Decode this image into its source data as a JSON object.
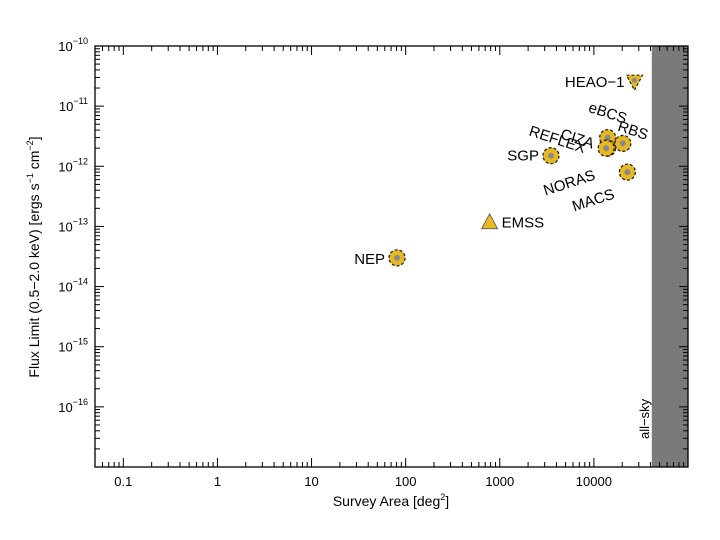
{
  "chart_data": {
    "type": "scatter",
    "title": "",
    "xlabel": "Survey Area [deg",
    "xlabel_sup": "2",
    "xlabel_end": "]",
    "ylabel_parts": [
      "Flux Limit (0.5−2.0 keV) [ergs s",
      "−1",
      " cm",
      "−2",
      "]"
    ],
    "x_scale": "log",
    "y_scale": "log",
    "xlim": [
      0.05,
      100000
    ],
    "ylim": [
      1e-17,
      1e-10
    ],
    "x_ticks": [
      {
        "value": 0.1,
        "label": "0.1"
      },
      {
        "value": 1,
        "label": "1"
      },
      {
        "value": 10,
        "label": "10"
      },
      {
        "value": 100,
        "label": "100"
      },
      {
        "value": 1000,
        "label": "1000"
      },
      {
        "value": 10000,
        "label": "10000"
      }
    ],
    "y_ticks": [
      {
        "exp": -10,
        "base": "10",
        "sup": "−10"
      },
      {
        "exp": -11,
        "base": "10",
        "sup": "−11"
      },
      {
        "exp": -12,
        "base": "10",
        "sup": "−12"
      },
      {
        "exp": -13,
        "base": "10",
        "sup": "−13"
      },
      {
        "exp": -14,
        "base": "10",
        "sup": "−14"
      },
      {
        "exp": -15,
        "base": "10",
        "sup": "−15"
      },
      {
        "exp": -16,
        "base": "10",
        "sup": "−16"
      }
    ],
    "all_sky_region": {
      "x_start": 41253,
      "label": "all−sky",
      "color": "#7a7a7a"
    },
    "marker_color": "#e8b820",
    "marker_inner_color": "#8a8a8a",
    "points": [
      {
        "name": "HEAO−1",
        "x": 27000,
        "y": 2.5e-11,
        "marker": "triangle-down",
        "label_pos": "left",
        "label_angle": 0
      },
      {
        "name": "eBCS",
        "x": 14000,
        "y": 3e-12,
        "marker": "circle",
        "label_pos": "upper-left",
        "label_angle": 18
      },
      {
        "name": "CIZA",
        "x": 14000,
        "y": 2e-12,
        "marker": "circle",
        "label_pos": "upper-left",
        "label_angle": 18
      },
      {
        "name": "REFLEX",
        "x": 13500,
        "y": 2e-12,
        "marker": "circle",
        "label_pos": "upper-left",
        "label_angle": 18
      },
      {
        "name": "RBS",
        "x": 20300,
        "y": 2.4e-12,
        "marker": "circle",
        "label_pos": "upper-right",
        "label_angle": 18
      },
      {
        "name": "SGP",
        "x": 3500,
        "y": 1.5e-12,
        "marker": "circle",
        "label_pos": "left",
        "label_angle": 0
      },
      {
        "name": "NORAS",
        "x": 13500,
        "y": 2e-12,
        "marker": "none",
        "label_pos": "lower-left",
        "label_angle": -18
      },
      {
        "name": "MACS",
        "x": 22700,
        "y": 8e-13,
        "marker": "circle",
        "label_pos": "lower-left",
        "label_angle": -18
      },
      {
        "name": "EMSS",
        "x": 780,
        "y": 1.2e-13,
        "marker": "triangle-up",
        "label_pos": "right",
        "label_angle": 0
      },
      {
        "name": "NEP",
        "x": 81,
        "y": 3e-14,
        "marker": "circle",
        "label_pos": "left",
        "label_angle": 0
      }
    ]
  }
}
